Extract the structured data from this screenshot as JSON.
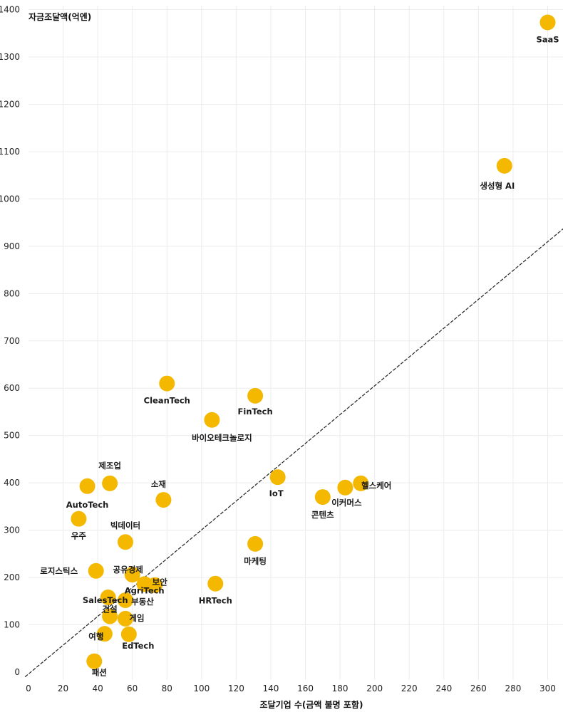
{
  "chart_data": {
    "type": "scatter",
    "xlabel": "조달기업 수(금액 불명 포함)",
    "ylabel": "자금조달액(억엔)",
    "xlim": [
      0,
      310
    ],
    "ylim": [
      0,
      1400
    ],
    "x_ticks": [
      "0",
      "20",
      "40",
      "60",
      "80",
      "100",
      "120",
      "140",
      "160",
      "180",
      "200",
      "220",
      "240",
      "260",
      "280",
      "300"
    ],
    "y_ticks": [
      "0",
      "100",
      "200",
      "300",
      "400",
      "500",
      "600",
      "700",
      "800",
      "900",
      "1000",
      "1100",
      "1200",
      "1300",
      "1400"
    ],
    "grid": true,
    "trendline": {
      "style": "dashed",
      "from": [
        -2,
        -10
      ],
      "to": [
        310,
        940
      ]
    },
    "points": [
      {
        "label": "SaaS",
        "x": 300,
        "y": 1373
      },
      {
        "label": "생성형 AI",
        "x": 275,
        "y": 1070
      },
      {
        "label": "CleanTech",
        "x": 80,
        "y": 610
      },
      {
        "label": "FinTech",
        "x": 131,
        "y": 584
      },
      {
        "label": "바이오테크놀로지",
        "x": 106,
        "y": 533
      },
      {
        "label": "제조업",
        "x": 47,
        "y": 399
      },
      {
        "label": "AutoTech",
        "x": 34,
        "y": 393
      },
      {
        "label": "소재",
        "x": 78,
        "y": 364
      },
      {
        "label": "IoT",
        "x": 144,
        "y": 412
      },
      {
        "label": "헬스케어",
        "x": 192,
        "y": 399
      },
      {
        "label": "이커머스",
        "x": 183,
        "y": 390
      },
      {
        "label": "콘텐츠",
        "x": 170,
        "y": 370
      },
      {
        "label": "우주",
        "x": 29,
        "y": 324
      },
      {
        "label": "빅데이터",
        "x": 56,
        "y": 275
      },
      {
        "label": "마케팅",
        "x": 131,
        "y": 271
      },
      {
        "label": "로지스틱스",
        "x": 39,
        "y": 214
      },
      {
        "label": "공유경제",
        "x": 60,
        "y": 206
      },
      {
        "label": "보안",
        "x": 73,
        "y": 184
      },
      {
        "label": "AgriTech",
        "x": 67,
        "y": 186
      },
      {
        "label": "HRTech",
        "x": 108,
        "y": 187
      },
      {
        "label": "SalesTech",
        "x": 46,
        "y": 158
      },
      {
        "label": "부동산",
        "x": 56,
        "y": 152
      },
      {
        "label": "건설",
        "x": 47,
        "y": 118
      },
      {
        "label": "게임",
        "x": 56,
        "y": 113
      },
      {
        "label": "여행",
        "x": 44,
        "y": 81
      },
      {
        "label": "EdTech",
        "x": 58,
        "y": 80
      },
      {
        "label": "패션",
        "x": 38,
        "y": 23
      }
    ]
  }
}
